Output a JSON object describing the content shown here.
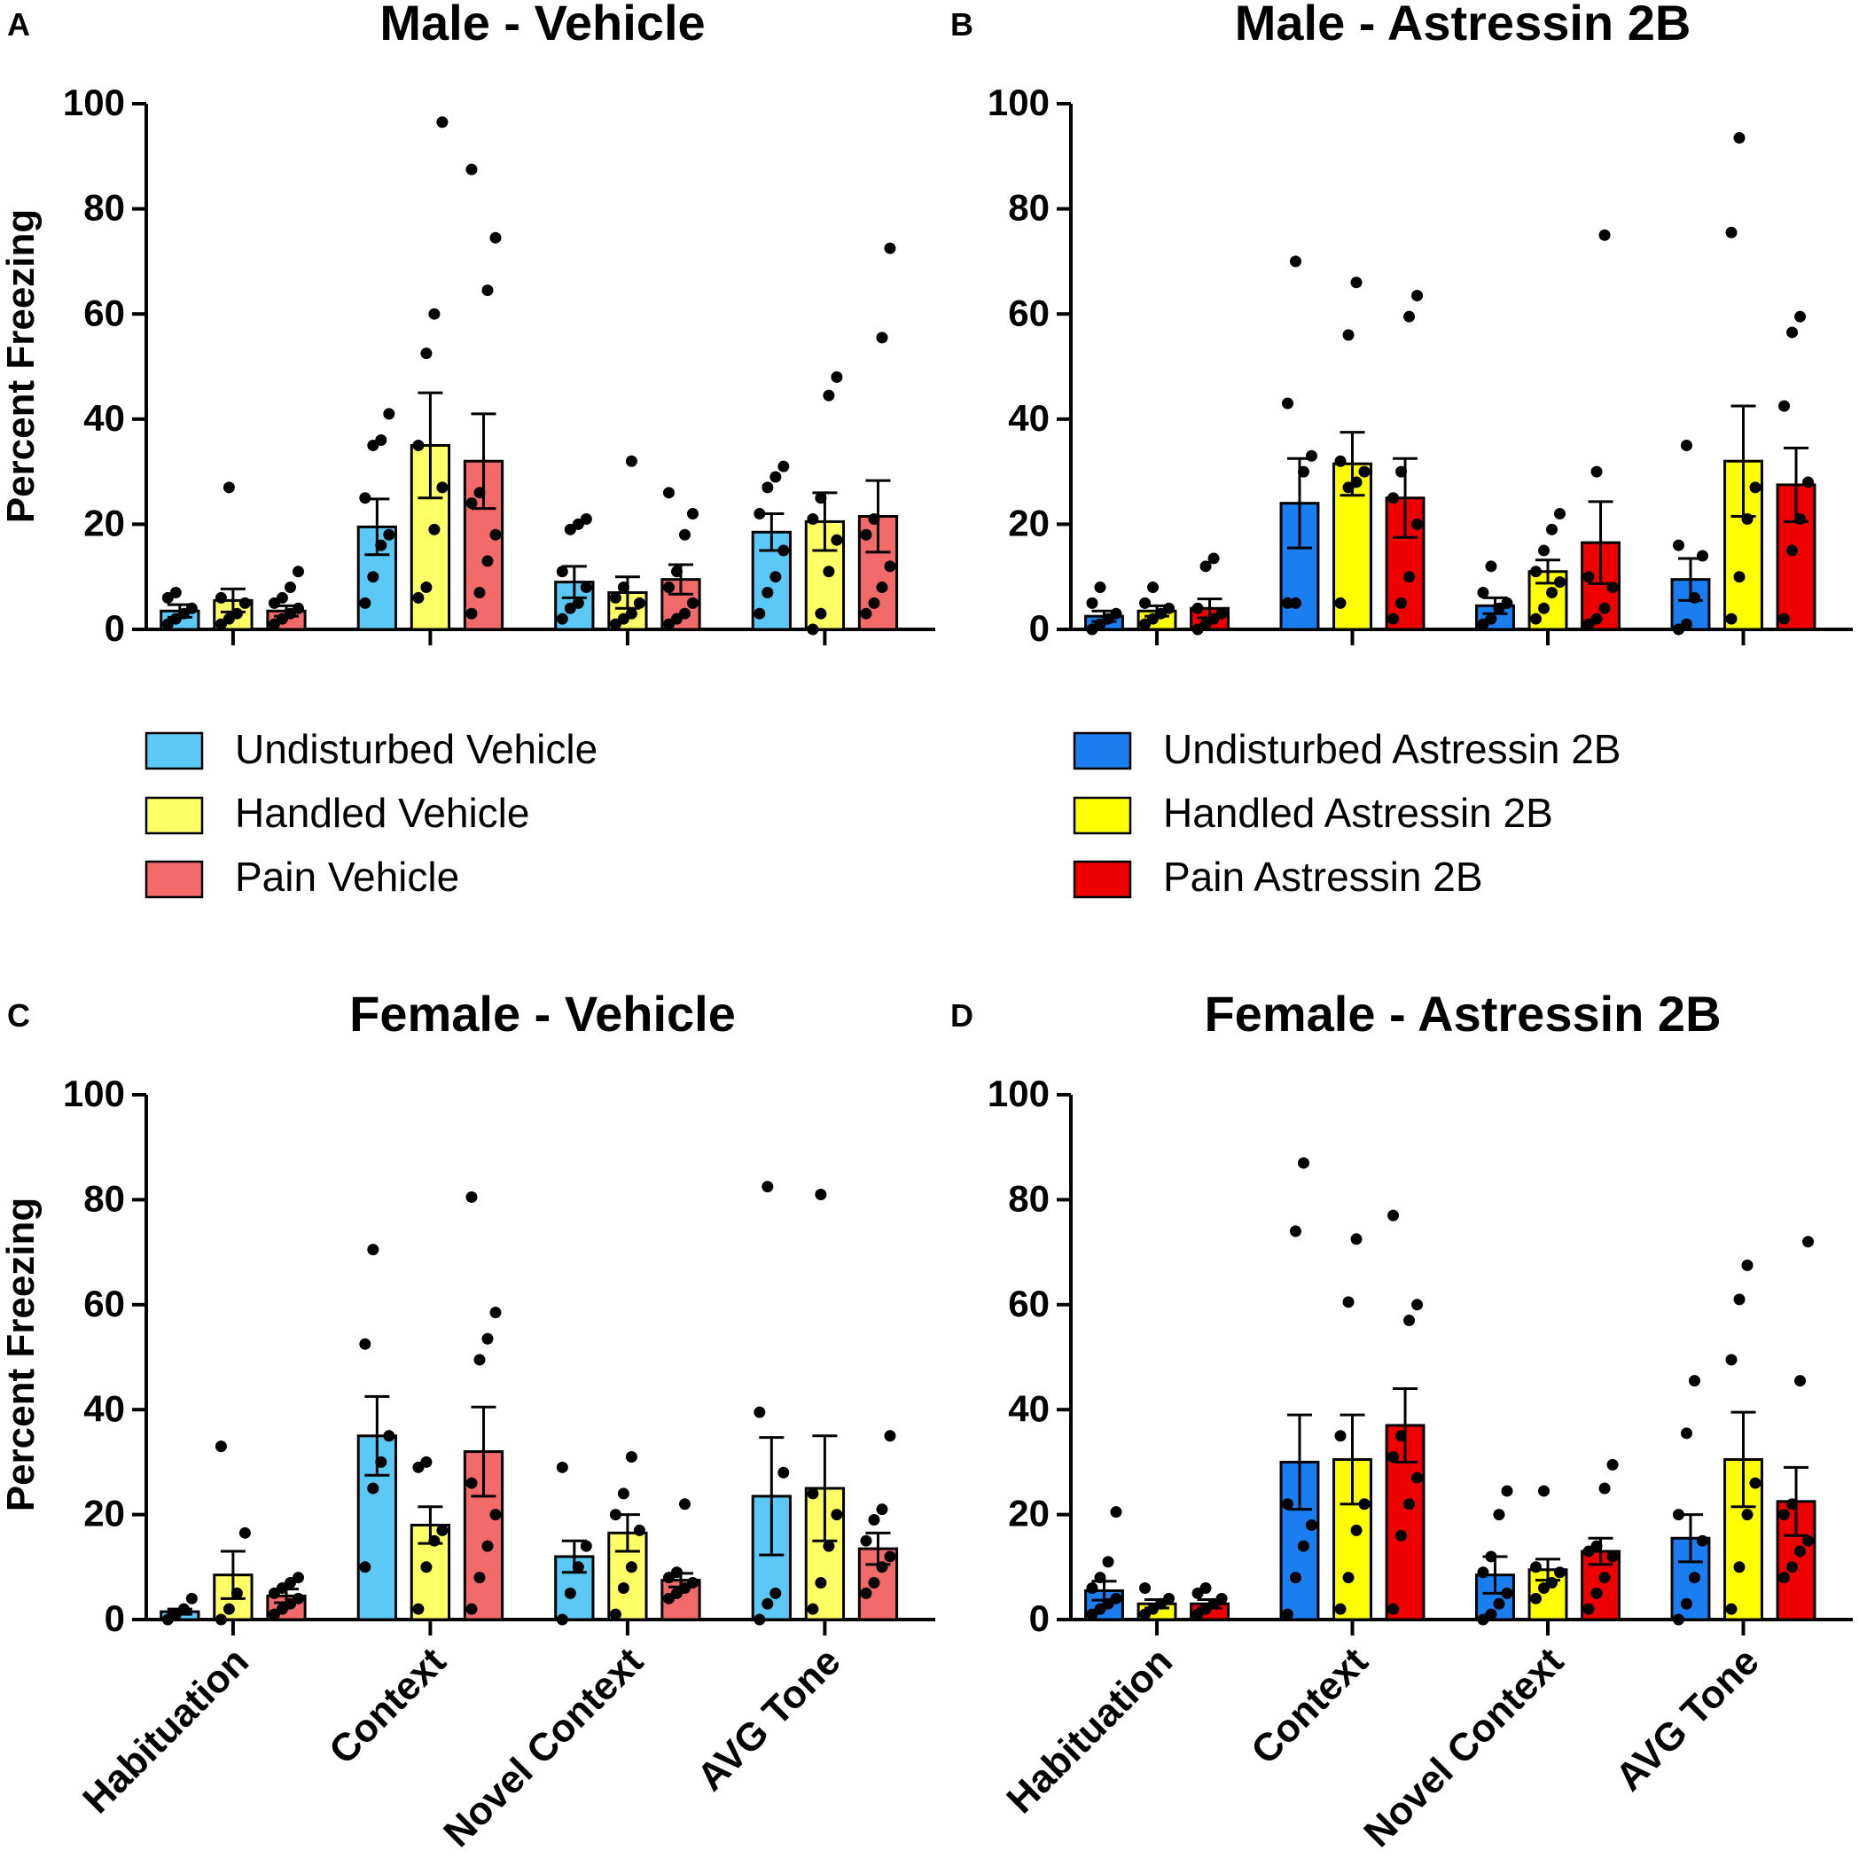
{
  "figure_letters": [
    "A",
    "B",
    "C",
    "D"
  ],
  "ylabel": "Percent Freezing",
  "colors": {
    "undisturbed_vehicle": "#5bc8f5",
    "handled_vehicle": "#ffff66",
    "pain_vehicle": "#f26a6a",
    "undisturbed_astressin": "#1a7df0",
    "handled_astressin": "#ffff00",
    "pain_astressin": "#ee0000"
  },
  "legends": {
    "vehicle": [
      "Undisturbed Vehicle",
      "Handled Vehicle",
      "Pain Vehicle"
    ],
    "astressin": [
      "Undisturbed Astressin 2B",
      "Handled Astressin 2B",
      "Pain Astressin 2B"
    ]
  },
  "chart_data": [
    {
      "id": "A",
      "type": "bar",
      "title": "Male - Vehicle",
      "ylabel": "Percent Freezing",
      "ylim": [
        0,
        100
      ],
      "yticks": [
        0,
        20,
        40,
        60,
        80,
        100
      ],
      "categories": [
        "Habituation",
        "Context",
        "Novel Context",
        "AVG Tone"
      ],
      "series": [
        {
          "name": "Undisturbed Vehicle",
          "color": "#5bc8f5",
          "values": [
            3.5,
            19.5,
            9,
            18.5
          ],
          "sem": [
            1.2,
            5.3,
            3,
            3.5
          ],
          "points": [
            [
              1,
              2,
              3,
              4,
              6,
              7
            ],
            [
              5,
              10,
              16,
              18,
              25,
              35,
              36,
              41
            ],
            [
              2,
              4,
              5,
              8,
              11,
              19,
              20,
              21
            ],
            [
              3,
              7,
              10,
              15,
              22,
              27,
              29,
              31
            ]
          ]
        },
        {
          "name": "Handled Vehicle",
          "color": "#ffff66",
          "values": [
            5.5,
            35,
            7,
            20.5
          ],
          "sem": [
            2.2,
            10,
            3,
            5.5
          ],
          "points": [
            [
              1,
              2,
              3,
              5,
              6,
              27
            ],
            [
              6,
              8,
              19,
              27,
              35,
              52.5,
              60,
              96.5
            ],
            [
              1,
              2,
              3,
              5,
              6,
              8,
              32
            ],
            [
              0,
              3,
              11,
              17,
              21,
              25,
              44.5,
              48
            ]
          ]
        },
        {
          "name": "Pain Vehicle",
          "color": "#f26a6a",
          "values": [
            3.5,
            32,
            9.5,
            21.5
          ],
          "sem": [
            1,
            9,
            2.8,
            6.8
          ],
          "points": [
            [
              1,
              2,
              3,
              4,
              5,
              6,
              8,
              11
            ],
            [
              3,
              7,
              13,
              18,
              24,
              26,
              64.5,
              74.5,
              87.5
            ],
            [
              1,
              2,
              3,
              5,
              8,
              11,
              18,
              22,
              26
            ],
            [
              3,
              5,
              8,
              12,
              18,
              21,
              55.5,
              72.5
            ]
          ]
        }
      ]
    },
    {
      "id": "B",
      "type": "bar",
      "title": "Male - Astressin 2B",
      "ylabel": "",
      "ylim": [
        0,
        100
      ],
      "yticks": [
        0,
        20,
        40,
        60,
        80,
        100
      ],
      "categories": [
        "Habituation",
        "Context",
        "Novel Context",
        "AVG Tone"
      ],
      "series": [
        {
          "name": "Undisturbed Astressin 2B",
          "color": "#1a7df0",
          "values": [
            2.5,
            24,
            4.5,
            9.5
          ],
          "sem": [
            1,
            8.5,
            1.5,
            4
          ],
          "points": [
            [
              0,
              1,
              2,
              3,
              5,
              8
            ],
            [
              5,
              5,
              30,
              33,
              43,
              70
            ],
            [
              1,
              2,
              4,
              5,
              7,
              12
            ],
            [
              0,
              1,
              6,
              14,
              16,
              35
            ]
          ]
        },
        {
          "name": "Handled Astressin 2B",
          "color": "#ffff00",
          "values": [
            3.5,
            31.5,
            11,
            32
          ],
          "sem": [
            1,
            6,
            2.2,
            10.5
          ],
          "points": [
            [
              1,
              2,
              3,
              4,
              5,
              8
            ],
            [
              5,
              27,
              28,
              30,
              32,
              56,
              66
            ],
            [
              2,
              4,
              7,
              9,
              11,
              15,
              19,
              22
            ],
            [
              2,
              10,
              21,
              27,
              75.5,
              93.5
            ]
          ]
        },
        {
          "name": "Pain Astressin 2B",
          "color": "#ee0000",
          "values": [
            4,
            25,
            16.5,
            27.5
          ],
          "sem": [
            1.8,
            7.5,
            7.8,
            7
          ],
          "points": [
            [
              0,
              1,
              2,
              3,
              4,
              12,
              13.5
            ],
            [
              2,
              5,
              10,
              20,
              25,
              30,
              59.5,
              63.5
            ],
            [
              1,
              2,
              4,
              8,
              10,
              30,
              75
            ],
            [
              2,
              15,
              21,
              28,
              42.5,
              56.5,
              59.5
            ]
          ]
        }
      ]
    },
    {
      "id": "C",
      "type": "bar",
      "title": "Female - Vehicle",
      "ylabel": "Percent Freezing",
      "ylim": [
        0,
        100
      ],
      "yticks": [
        0,
        20,
        40,
        60,
        80,
        100
      ],
      "categories": [
        "Habituation",
        "Context",
        "Novel Context",
        "AVG Tone"
      ],
      "series": [
        {
          "name": "Undisturbed Vehicle",
          "color": "#5bc8f5",
          "values": [
            1.5,
            35,
            12,
            23.5
          ],
          "sem": [
            0.5,
            7.5,
            3,
            11.2
          ],
          "points": [
            [
              0,
              1,
              2,
              4
            ],
            [
              10,
              25,
              30,
              35,
              52.5,
              70.5
            ],
            [
              0,
              5,
              10,
              14,
              29
            ],
            [
              0,
              3,
              5,
              28,
              39.5,
              82.5
            ]
          ]
        },
        {
          "name": "Handled Vehicle",
          "color": "#ffff66",
          "values": [
            8.5,
            18,
            16.5,
            25
          ],
          "sem": [
            4.5,
            3.5,
            3.5,
            10
          ],
          "points": [
            [
              0,
              2,
              5,
              16.5,
              33
            ],
            [
              2,
              10,
              15,
              17,
              29,
              30
            ],
            [
              1,
              6,
              10,
              17,
              20,
              24,
              31
            ],
            [
              2,
              7,
              14,
              20,
              24,
              81
            ]
          ]
        },
        {
          "name": "Pain Vehicle",
          "color": "#f26a6a",
          "values": [
            4.5,
            32,
            7.5,
            13.5
          ],
          "sem": [
            1.3,
            8.5,
            1.3,
            3
          ],
          "points": [
            [
              1,
              2,
              3,
              4,
              5,
              6,
              7,
              8
            ],
            [
              2,
              8,
              14,
              20,
              26,
              49.5,
              53.5,
              58.5,
              80.5
            ],
            [
              4,
              5,
              6,
              7,
              8,
              9,
              22
            ],
            [
              5,
              7,
              10,
              12,
              15,
              19,
              21,
              35
            ]
          ]
        }
      ]
    },
    {
      "id": "D",
      "type": "bar",
      "title": "Female - Astressin 2B",
      "ylabel": "",
      "ylim": [
        0,
        100
      ],
      "yticks": [
        0,
        20,
        40,
        60,
        80,
        100
      ],
      "categories": [
        "Habituation",
        "Context",
        "Novel Context",
        "AVG Tone"
      ],
      "series": [
        {
          "name": "Undisturbed Astressin 2B",
          "color": "#1a7df0",
          "values": [
            5.5,
            30,
            8.5,
            15.5
          ],
          "sem": [
            1.8,
            9,
            3.5,
            4.5
          ],
          "points": [
            [
              1,
              2,
              3,
              4,
              6,
              8,
              11,
              20.5
            ],
            [
              1,
              8,
              14,
              18,
              22,
              74,
              87
            ],
            [
              0,
              1,
              3,
              5,
              9,
              12,
              20,
              24.5
            ],
            [
              0,
              3,
              8,
              15,
              20,
              35.5,
              45.5
            ]
          ]
        },
        {
          "name": "Handled Astressin 2B",
          "color": "#ffff00",
          "values": [
            3,
            30.5,
            9.5,
            30.5
          ],
          "sem": [
            0.8,
            8.5,
            2,
            9
          ],
          "points": [
            [
              1,
              2,
              3,
              4,
              6
            ],
            [
              2,
              8,
              17,
              22,
              35,
              60.5,
              72.5
            ],
            [
              4,
              6,
              7,
              9,
              10,
              24.5
            ],
            [
              2,
              10,
              20,
              26,
              49.5,
              61,
              67.5
            ]
          ]
        },
        {
          "name": "Pain Astressin 2B",
          "color": "#ee0000",
          "values": [
            3,
            37,
            13,
            22.5
          ],
          "sem": [
            0.8,
            7,
            2.5,
            6.5
          ],
          "points": [
            [
              1,
              2,
              3,
              4,
              5,
              6
            ],
            [
              2,
              16,
              22,
              27,
              31,
              35,
              57,
              60,
              77
            ],
            [
              2,
              5,
              8,
              12,
              13,
              14,
              25,
              29.5
            ],
            [
              8,
              10,
              13,
              15,
              20,
              22,
              45.5,
              72
            ]
          ]
        }
      ]
    }
  ]
}
